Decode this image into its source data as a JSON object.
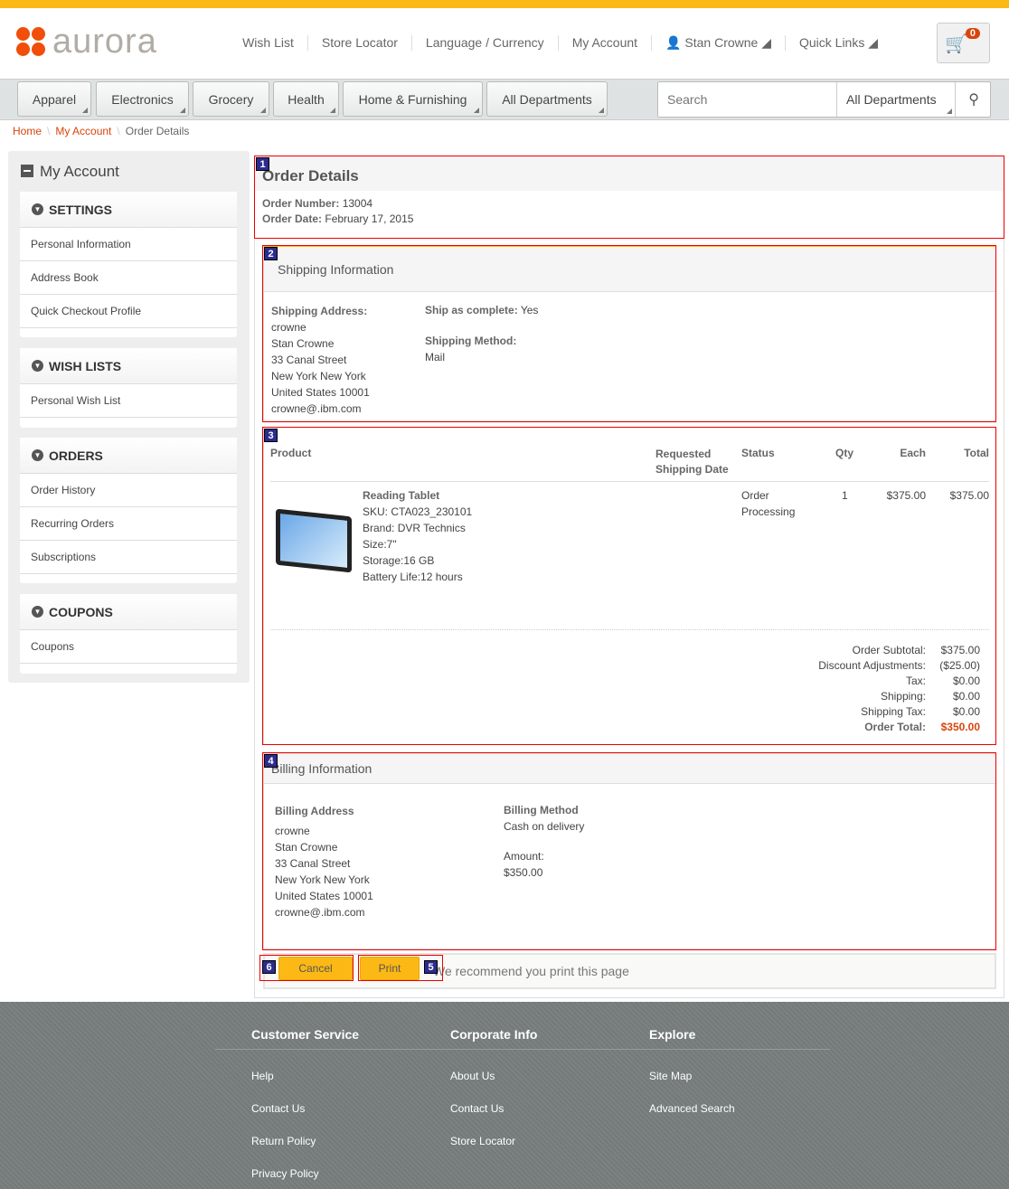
{
  "header": {
    "logo": "aurora",
    "links": [
      "Wish List",
      "Store Locator",
      "Language / Currency",
      "My Account",
      "Stan Crowne",
      "Quick Links"
    ],
    "cart_count": "0"
  },
  "nav": {
    "departments": [
      "Apparel",
      "Electronics",
      "Grocery",
      "Health",
      "Home & Furnishing",
      "All Departments"
    ],
    "search_placeholder": "Search",
    "search_scope": "All Departments"
  },
  "breadcrumb": [
    "Home",
    "My Account",
    "Order Details"
  ],
  "sidebar": {
    "title": "My Account",
    "groups": [
      {
        "title": "SETTINGS",
        "items": [
          "Personal Information",
          "Address Book",
          "Quick Checkout Profile"
        ]
      },
      {
        "title": "WISH LISTS",
        "items": [
          "Personal Wish List"
        ]
      },
      {
        "title": "ORDERS",
        "items": [
          "Order History",
          "Recurring Orders",
          "Subscriptions"
        ]
      },
      {
        "title": "COUPONS",
        "items": [
          "Coupons"
        ]
      }
    ]
  },
  "order": {
    "title": "Order Details",
    "number_label": "Order Number:",
    "number": "13004",
    "date_label": "Order Date:",
    "date": "February 17, 2015"
  },
  "shipping": {
    "title": "Shipping Information",
    "address_label": "Shipping Address:",
    "address": [
      "crowne",
      "Stan Crowne",
      "33 Canal Street",
      "New York New York",
      "United States 10001",
      "crowne@.ibm.com"
    ],
    "complete_label": "Ship as complete:",
    "complete": "Yes",
    "method_label": "Shipping Method:",
    "method": "Mail"
  },
  "items": {
    "headers": [
      "Product",
      "Requested Shipping Date",
      "Status",
      "Qty",
      "Each",
      "Total"
    ],
    "rows": [
      {
        "name": "Reading Tablet",
        "details": [
          "SKU: CTA023_230101",
          "Brand: DVR Technics",
          "Size:7\"",
          "Storage:16 GB",
          "Battery Life:12 hours"
        ],
        "status": "Order Processing",
        "qty": "1",
        "each": "$375.00",
        "total": "$375.00"
      }
    ],
    "summary": [
      [
        "Order Subtotal:",
        "$375.00"
      ],
      [
        "Discount Adjustments:",
        "($25.00)"
      ],
      [
        "Tax:",
        "$0.00"
      ],
      [
        "Shipping:",
        "$0.00"
      ],
      [
        "Shipping Tax:",
        "$0.00"
      ],
      [
        "Order Total:",
        "$350.00"
      ]
    ]
  },
  "billing": {
    "title": "Billing Information",
    "address_label": "Billing Address",
    "address": [
      "crowne",
      "Stan Crowne",
      "33 Canal Street",
      "New York New York",
      "United States 10001",
      "crowne@.ibm.com"
    ],
    "method_label": "Billing Method",
    "method": "Cash on delivery",
    "amount_label": "Amount:",
    "amount": "$350.00"
  },
  "actions": {
    "cancel": "Cancel",
    "print": "Print",
    "note": "We recommend you print this page"
  },
  "marks": [
    "1",
    "2",
    "3",
    "4",
    "5",
    "6"
  ],
  "footer": [
    {
      "title": "Customer Service",
      "links": [
        "Help",
        "Contact Us",
        "Return Policy",
        "Privacy Policy"
      ]
    },
    {
      "title": "Corporate Info",
      "links": [
        "About Us",
        "Contact Us",
        "Store Locator"
      ]
    },
    {
      "title": "Explore",
      "links": [
        "Site Map",
        "Advanced Search"
      ]
    }
  ],
  "colors": {
    "accent": "#fcb814",
    "brand": "#f04e09",
    "link": "#d9440b"
  }
}
